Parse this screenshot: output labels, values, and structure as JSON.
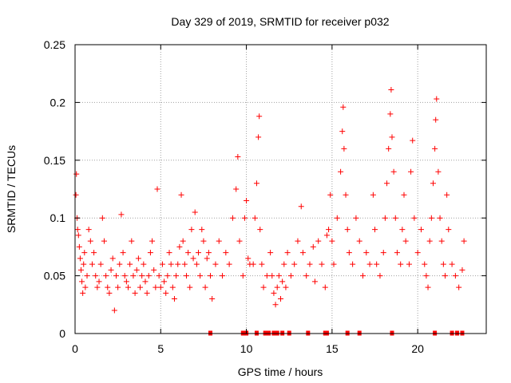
{
  "chart_data": {
    "type": "scatter",
    "title": "Day 329 of 2019, SRMTID for receiver p032",
    "xlabel": "GPS time / hours",
    "ylabel": "SRMTID / TECUs",
    "xlim": [
      0,
      24
    ],
    "ylim": [
      0,
      0.25
    ],
    "xticks": [
      0,
      5,
      10,
      15,
      20
    ],
    "xtick_labels": [
      "0",
      "5",
      "10",
      "15",
      "20"
    ],
    "yticks": [
      0,
      0.05,
      0.1,
      0.15,
      0.2,
      0.25
    ],
    "ytick_labels": [
      "0",
      "0.05",
      "0.1",
      "0.15",
      "0.2",
      "0.25"
    ],
    "grid": true,
    "marker": "+",
    "series_color": "#ff0000",
    "zero_marks_x": [
      7.9,
      9.8,
      10.0,
      10.6,
      11.1,
      11.3,
      11.6,
      11.8,
      12.1,
      12.5,
      13.6,
      14.6,
      14.7,
      15.9,
      16.6,
      18.5,
      21.0,
      22.0,
      22.3,
      22.6
    ],
    "series": [
      {
        "name": "p032",
        "points": [
          [
            0.05,
            0.12
          ],
          [
            0.08,
            0.138
          ],
          [
            0.12,
            0.1
          ],
          [
            0.15,
            0.09
          ],
          [
            0.2,
            0.085
          ],
          [
            0.25,
            0.075
          ],
          [
            0.3,
            0.065
          ],
          [
            0.35,
            0.055
          ],
          [
            0.4,
            0.045
          ],
          [
            0.45,
            0.035
          ],
          [
            0.5,
            0.06
          ],
          [
            0.55,
            0.07
          ],
          [
            0.6,
            0.04
          ],
          [
            0.7,
            0.05
          ],
          [
            0.8,
            0.09
          ],
          [
            0.9,
            0.08
          ],
          [
            1.0,
            0.06
          ],
          [
            1.1,
            0.07
          ],
          [
            1.2,
            0.05
          ],
          [
            1.3,
            0.04
          ],
          [
            1.4,
            0.045
          ],
          [
            1.5,
            0.06
          ],
          [
            1.6,
            0.1
          ],
          [
            1.7,
            0.08
          ],
          [
            1.8,
            0.05
          ],
          [
            1.9,
            0.04
          ],
          [
            2.0,
            0.035
          ],
          [
            2.1,
            0.055
          ],
          [
            2.2,
            0.065
          ],
          [
            2.3,
            0.02
          ],
          [
            2.4,
            0.05
          ],
          [
            2.5,
            0.04
          ],
          [
            2.6,
            0.06
          ],
          [
            2.7,
            0.103
          ],
          [
            2.8,
            0.07
          ],
          [
            2.9,
            0.05
          ],
          [
            3.0,
            0.045
          ],
          [
            3.1,
            0.04
          ],
          [
            3.2,
            0.06
          ],
          [
            3.3,
            0.08
          ],
          [
            3.4,
            0.05
          ],
          [
            3.5,
            0.035
          ],
          [
            3.6,
            0.055
          ],
          [
            3.7,
            0.065
          ],
          [
            3.8,
            0.04
          ],
          [
            3.9,
            0.05
          ],
          [
            4.0,
            0.06
          ],
          [
            4.1,
            0.045
          ],
          [
            4.2,
            0.035
          ],
          [
            4.3,
            0.05
          ],
          [
            4.4,
            0.07
          ],
          [
            4.5,
            0.08
          ],
          [
            4.6,
            0.055
          ],
          [
            4.7,
            0.04
          ],
          [
            4.8,
            0.125
          ],
          [
            4.9,
            0.05
          ],
          [
            5.0,
            0.04
          ],
          [
            5.1,
            0.06
          ],
          [
            5.2,
            0.045
          ],
          [
            5.3,
            0.035
          ],
          [
            5.4,
            0.05
          ],
          [
            5.5,
            0.07
          ],
          [
            5.6,
            0.06
          ],
          [
            5.7,
            0.04
          ],
          [
            5.8,
            0.03
          ],
          [
            5.9,
            0.05
          ],
          [
            6.0,
            0.06
          ],
          [
            6.1,
            0.075
          ],
          [
            6.2,
            0.12
          ],
          [
            6.3,
            0.08
          ],
          [
            6.4,
            0.06
          ],
          [
            6.5,
            0.05
          ],
          [
            6.6,
            0.07
          ],
          [
            6.7,
            0.04
          ],
          [
            6.8,
            0.09
          ],
          [
            6.9,
            0.065
          ],
          [
            7.0,
            0.105
          ],
          [
            7.1,
            0.06
          ],
          [
            7.2,
            0.07
          ],
          [
            7.3,
            0.05
          ],
          [
            7.4,
            0.09
          ],
          [
            7.5,
            0.08
          ],
          [
            7.6,
            0.04
          ],
          [
            7.7,
            0.065
          ],
          [
            7.8,
            0.07
          ],
          [
            7.9,
            0.05
          ],
          [
            8.0,
            0.03
          ],
          [
            8.2,
            0.06
          ],
          [
            8.4,
            0.08
          ],
          [
            8.6,
            0.05
          ],
          [
            8.8,
            0.07
          ],
          [
            9.0,
            0.06
          ],
          [
            9.2,
            0.1
          ],
          [
            9.4,
            0.125
          ],
          [
            9.5,
            0.153
          ],
          [
            9.6,
            0.08
          ],
          [
            9.8,
            0.05
          ],
          [
            9.9,
            0.1
          ],
          [
            10.0,
            0.115
          ],
          [
            10.1,
            0.065
          ],
          [
            10.2,
            0.06
          ],
          [
            10.4,
            0.06
          ],
          [
            10.5,
            0.1
          ],
          [
            10.6,
            0.13
          ],
          [
            10.7,
            0.17
          ],
          [
            10.75,
            0.188
          ],
          [
            10.8,
            0.09
          ],
          [
            10.9,
            0.06
          ],
          [
            11.0,
            0.04
          ],
          [
            11.2,
            0.05
          ],
          [
            11.4,
            0.07
          ],
          [
            11.5,
            0.05
          ],
          [
            11.6,
            0.035
          ],
          [
            11.7,
            0.025
          ],
          [
            11.8,
            0.04
          ],
          [
            11.9,
            0.05
          ],
          [
            12.0,
            0.03
          ],
          [
            12.1,
            0.045
          ],
          [
            12.2,
            0.06
          ],
          [
            12.3,
            0.04
          ],
          [
            12.4,
            0.07
          ],
          [
            12.6,
            0.05
          ],
          [
            12.8,
            0.06
          ],
          [
            13.0,
            0.08
          ],
          [
            13.2,
            0.11
          ],
          [
            13.3,
            0.07
          ],
          [
            13.5,
            0.05
          ],
          [
            13.7,
            0.06
          ],
          [
            13.9,
            0.075
          ],
          [
            14.0,
            0.045
          ],
          [
            14.2,
            0.08
          ],
          [
            14.4,
            0.06
          ],
          [
            14.6,
            0.04
          ],
          [
            14.7,
            0.085
          ],
          [
            14.8,
            0.09
          ],
          [
            14.9,
            0.12
          ],
          [
            15.0,
            0.08
          ],
          [
            15.1,
            0.06
          ],
          [
            15.3,
            0.1
          ],
          [
            15.5,
            0.14
          ],
          [
            15.6,
            0.175
          ],
          [
            15.65,
            0.196
          ],
          [
            15.7,
            0.16
          ],
          [
            15.8,
            0.12
          ],
          [
            15.9,
            0.09
          ],
          [
            16.0,
            0.07
          ],
          [
            16.2,
            0.06
          ],
          [
            16.4,
            0.1
          ],
          [
            16.6,
            0.08
          ],
          [
            16.8,
            0.05
          ],
          [
            17.0,
            0.07
          ],
          [
            17.2,
            0.06
          ],
          [
            17.4,
            0.12
          ],
          [
            17.5,
            0.09
          ],
          [
            17.6,
            0.06
          ],
          [
            17.8,
            0.05
          ],
          [
            18.0,
            0.07
          ],
          [
            18.1,
            0.1
          ],
          [
            18.2,
            0.13
          ],
          [
            18.3,
            0.16
          ],
          [
            18.4,
            0.19
          ],
          [
            18.45,
            0.211
          ],
          [
            18.5,
            0.17
          ],
          [
            18.6,
            0.14
          ],
          [
            18.7,
            0.1
          ],
          [
            18.8,
            0.07
          ],
          [
            19.0,
            0.06
          ],
          [
            19.1,
            0.09
          ],
          [
            19.2,
            0.12
          ],
          [
            19.3,
            0.08
          ],
          [
            19.5,
            0.06
          ],
          [
            19.6,
            0.14
          ],
          [
            19.7,
            0.167
          ],
          [
            19.8,
            0.1
          ],
          [
            20.0,
            0.07
          ],
          [
            20.2,
            0.09
          ],
          [
            20.4,
            0.06
          ],
          [
            20.5,
            0.05
          ],
          [
            20.6,
            0.04
          ],
          [
            20.7,
            0.08
          ],
          [
            20.8,
            0.1
          ],
          [
            20.9,
            0.13
          ],
          [
            21.0,
            0.16
          ],
          [
            21.05,
            0.185
          ],
          [
            21.1,
            0.203
          ],
          [
            21.2,
            0.14
          ],
          [
            21.3,
            0.1
          ],
          [
            21.4,
            0.08
          ],
          [
            21.5,
            0.06
          ],
          [
            21.6,
            0.05
          ],
          [
            21.7,
            0.12
          ],
          [
            21.8,
            0.09
          ],
          [
            22.0,
            0.06
          ],
          [
            22.2,
            0.05
          ],
          [
            22.4,
            0.04
          ],
          [
            22.6,
            0.055
          ],
          [
            22.7,
            0.08
          ]
        ]
      }
    ]
  }
}
